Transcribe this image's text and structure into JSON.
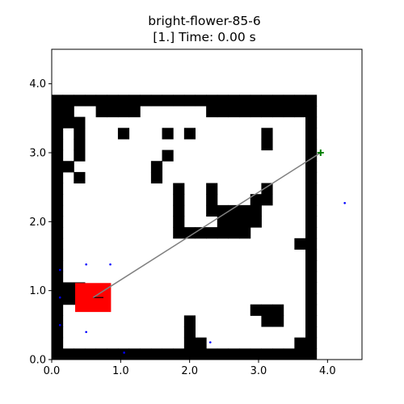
{
  "title_line1": "bright-flower-85-6",
  "title_line2": "[1.] Time: 0.00 s",
  "chart_data": {
    "type": "scatter",
    "xlim": [
      0,
      4.5
    ],
    "ylim": [
      0,
      4.5
    ],
    "x_ticks": [
      "0.0",
      "1.0",
      "2.0",
      "3.0",
      "4.0"
    ],
    "y_ticks": [
      "0.0",
      "1.0",
      "2.0",
      "3.0",
      "4.0"
    ],
    "grid": false,
    "map": {
      "cell_size": 0.16,
      "colors": {
        "wall": "#000000",
        "free": "#ffffff"
      },
      "rows": [
        "111111111111111111111111",
        "110011110000001111111111",
        "111000000000000000000001",
        "101000100010100000010001",
        "101000000000000000010001",
        "101000000010000000000001",
        "110000000100000000000001",
        "101000000100000000000001",
        "100000000001001000010001",
        "100000000001001000110001",
        "100000000001001111100001",
        "100000000001000111100001",
        "100000000001111111000001",
        "100000000000000000000011",
        "100000000000000000000001",
        "100000000000000000000001",
        "100000000000000000000001",
        "111000000000000000000001",
        "111000000000000000000001",
        "100000000000000000111001",
        "100000000000100000011001",
        "100000000000100000000001",
        "100000000000110000000011",
        "111111111111111111111111"
      ]
    },
    "robot": {
      "x": 0.6,
      "y": 0.9,
      "w": 0.52,
      "h": 0.42,
      "heading": [
        0.75,
        0.9
      ],
      "color": "#ff0000"
    },
    "goal": {
      "x": 3.9,
      "y": 3.0,
      "color": "#008000"
    },
    "path": {
      "from": [
        0.6,
        0.9
      ],
      "to": [
        3.9,
        3.0
      ],
      "color": "#808080"
    },
    "lidar_points": [
      {
        "x": 0.12,
        "y": 1.3
      },
      {
        "x": 0.5,
        "y": 1.38
      },
      {
        "x": 0.85,
        "y": 1.38
      },
      {
        "x": 0.12,
        "y": 0.9
      },
      {
        "x": 0.12,
        "y": 0.5
      },
      {
        "x": 0.5,
        "y": 0.4
      },
      {
        "x": 1.05,
        "y": 0.1
      },
      {
        "x": 2.3,
        "y": 0.25
      },
      {
        "x": 4.25,
        "y": 2.27
      }
    ]
  }
}
